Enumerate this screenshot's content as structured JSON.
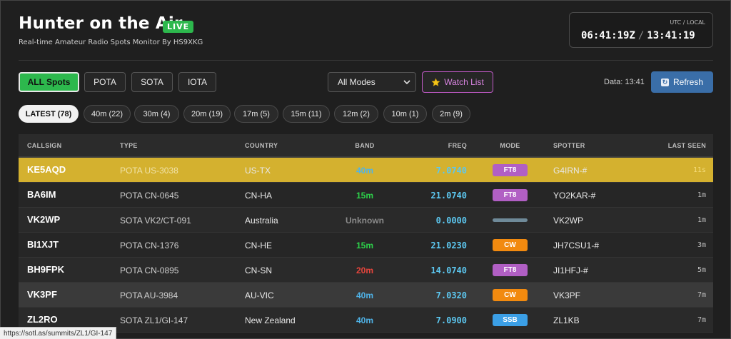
{
  "header": {
    "title": "Hunter on the Air",
    "live_badge": "LIVE",
    "subtitle": "Real-time Amateur Radio Spots Monitor By HS9XKG"
  },
  "clock": {
    "label": "UTC / LOCAL",
    "utc": "06:41:19Z",
    "separator": "/",
    "local": "13:41:19"
  },
  "filters": {
    "programs": [
      {
        "label": "ALL Spots",
        "active": true
      },
      {
        "label": "POTA",
        "active": false
      },
      {
        "label": "SOTA",
        "active": false
      },
      {
        "label": "IOTA",
        "active": false
      }
    ],
    "mode_select": "All Modes",
    "watch_list": "Watch List",
    "data_time": "Data: 13:41",
    "refresh": "Refresh"
  },
  "bands": [
    {
      "label": "LATEST (78)",
      "active": true
    },
    {
      "label": "40m (22)",
      "active": false
    },
    {
      "label": "30m (4)",
      "active": false
    },
    {
      "label": "20m (19)",
      "active": false
    },
    {
      "label": "17m (5)",
      "active": false
    },
    {
      "label": "15m (11)",
      "active": false
    },
    {
      "label": "12m (2)",
      "active": false
    },
    {
      "label": "10m (1)",
      "active": false
    },
    {
      "label": "2m (9)",
      "active": false
    }
  ],
  "table": {
    "columns": [
      "CALLSIGN",
      "TYPE",
      "COUNTRY",
      "BAND",
      "FREQ",
      "MODE",
      "SPOTTER",
      "LAST SEEN"
    ],
    "rows": [
      {
        "callsign": "KE5AQD",
        "type": "POTA US-3038",
        "country": "US-TX",
        "band": "40m",
        "freq": "7.0740",
        "mode": "FT8",
        "spotter": "G4IRN-#",
        "last_seen": "11s"
      },
      {
        "callsign": "BA6IM",
        "type": "POTA CN-0645",
        "country": "CN-HA",
        "band": "15m",
        "freq": "21.0740",
        "mode": "FT8",
        "spotter": "YO2KAR-#",
        "last_seen": "1m"
      },
      {
        "callsign": "VK2WP",
        "type": "SOTA VK2/CT-091",
        "country": "Australia",
        "band": "Unknown",
        "freq": "0.0000",
        "mode": "",
        "spotter": "VK2WP",
        "last_seen": "1m"
      },
      {
        "callsign": "BI1XJT",
        "type": "POTA CN-1376",
        "country": "CN-HE",
        "band": "15m",
        "freq": "21.0230",
        "mode": "CW",
        "spotter": "JH7CSU1-#",
        "last_seen": "3m"
      },
      {
        "callsign": "BH9FPK",
        "type": "POTA CN-0895",
        "country": "CN-SN",
        "band": "20m",
        "freq": "14.0740",
        "mode": "FT8",
        "spotter": "JI1HFJ-#",
        "last_seen": "5m"
      },
      {
        "callsign": "VK3PF",
        "type": "POTA AU-3984",
        "country": "AU-VIC",
        "band": "40m",
        "freq": "7.0320",
        "mode": "CW",
        "spotter": "VK3PF",
        "last_seen": "7m"
      },
      {
        "callsign": "ZL2RO",
        "type": "SOTA ZL1/GI-147",
        "country": "New Zealand",
        "band": "40m",
        "freq": "7.0900",
        "mode": "SSB",
        "spotter": "ZL1KB",
        "last_seen": "7m"
      }
    ]
  },
  "colors": {
    "band": {
      "40m": "#4fb3e8",
      "15m": "#2dd04a",
      "20m": "#e8453c",
      "Unknown": "#8a8a8a"
    },
    "mode": {
      "FT8": "#b15fc4",
      "CW": "#f28a0f",
      "SSB": "#3b9fe6",
      "": "#6f8a99"
    },
    "highlight_row": "#d4b12f"
  },
  "status_url": "https://sotl.as/summits/ZL1/GI-147"
}
